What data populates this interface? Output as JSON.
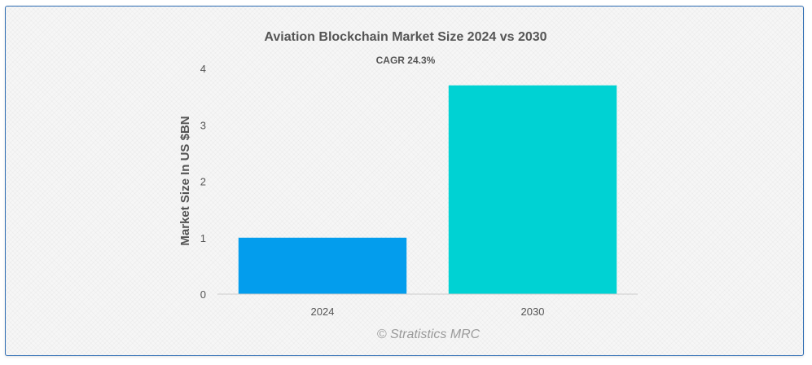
{
  "chart_data": {
    "type": "bar",
    "title": "Aviation Blockchain Market Size 2024 vs 2030",
    "subtitle": "CAGR 24.3%",
    "xlabel": "",
    "ylabel": "Market Size In US $BN",
    "categories": [
      "2024",
      "2030"
    ],
    "values": [
      1.0,
      3.7
    ],
    "colors": [
      "#039ded",
      "#00d2d3"
    ],
    "ylim": [
      0,
      4
    ],
    "yticks": [
      0,
      1,
      2,
      3,
      4
    ],
    "grid": false,
    "legend": "none"
  },
  "watermark": "© Stratistics MRC"
}
